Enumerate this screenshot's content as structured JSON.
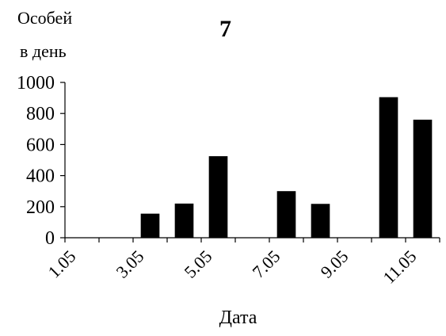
{
  "chart_data": {
    "type": "bar",
    "title": "7",
    "ylabel_lines": [
      "Особей",
      "в день"
    ],
    "xlabel": "Дата",
    "ylim": [
      0,
      1000
    ],
    "yticks": [
      0,
      200,
      400,
      600,
      800,
      1000
    ],
    "xticks": [
      "1.05",
      "3.05",
      "5.05",
      "7.05",
      "9.05",
      "11.05"
    ],
    "categories": [
      "1.05",
      "2.05",
      "3.05",
      "4.05",
      "5.05",
      "6.05",
      "7.05",
      "8.05",
      "9.05",
      "10.05",
      "11.05"
    ],
    "values": [
      0,
      0,
      155,
      220,
      525,
      0,
      300,
      218,
      0,
      905,
      760
    ],
    "bar_color": "#000000",
    "grid": false
  }
}
